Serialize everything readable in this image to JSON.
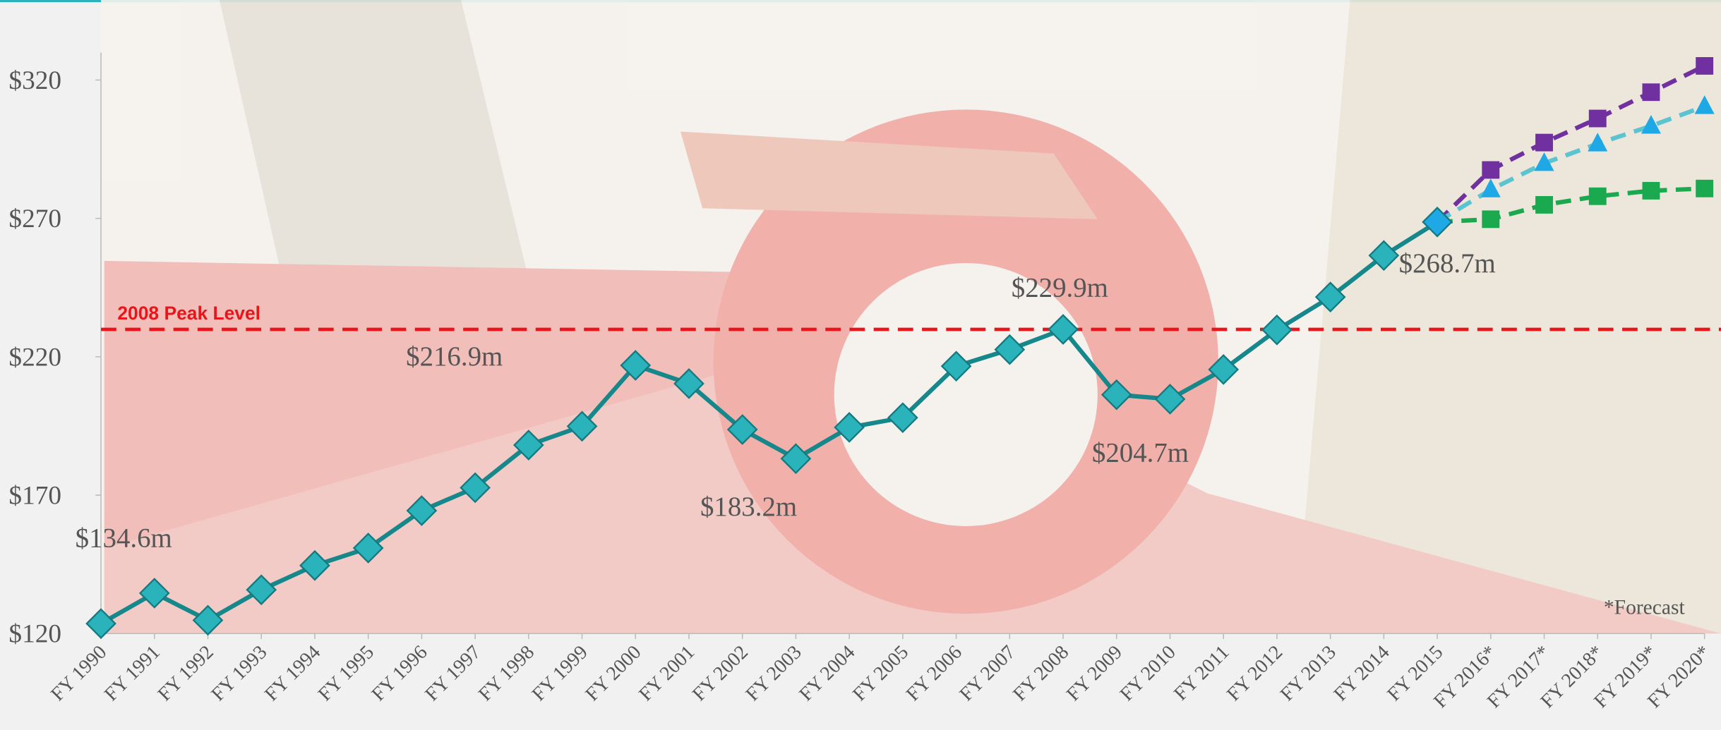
{
  "chart_data": {
    "type": "line",
    "categories": [
      "FY 1990",
      "FY 1991",
      "FY 1992",
      "FY 1993",
      "FY 1994",
      "FY 1995",
      "FY 1996",
      "FY 1997",
      "FY 1998",
      "FY 1999",
      "FY 2000",
      "FY 2001",
      "FY 2002",
      "FY 2003",
      "FY 2004",
      "FY 2005",
      "FY 2006",
      "FY 2007",
      "FY 2008",
      "FY 2009",
      "FY 2010",
      "FY 2011",
      "FY 2012",
      "FY 2013",
      "FY 2014",
      "FY 2015",
      "FY 2016*",
      "FY 2017*",
      "FY 2018*",
      "FY 2019*",
      "FY 2020*"
    ],
    "series": [
      {
        "color": "#16878a",
        "marker_color": "#2bb3bb",
        "last_point_color": "#1ea8e6",
        "marker": "diamond",
        "dash": false,
        "values": [
          123.6,
          134.6,
          124.8,
          135.8,
          144.6,
          150.9,
          164.4,
          172.7,
          188.1,
          194.9,
          216.9,
          210.3,
          193.7,
          183.2,
          194.5,
          198.0,
          216.6,
          222.6,
          229.9,
          206.3,
          204.7,
          215.4,
          229.7,
          241.6,
          256.6,
          268.7,
          null,
          null,
          null,
          null,
          null
        ],
        "value_labels": [
          null,
          "$134.6m",
          null,
          null,
          null,
          null,
          null,
          null,
          null,
          null,
          "$216.9m",
          null,
          null,
          "$183.2m",
          null,
          null,
          null,
          null,
          "$229.9m",
          null,
          "$204.7m",
          null,
          null,
          null,
          null,
          "$268.7m",
          null,
          null,
          null,
          null,
          null
        ]
      },
      {
        "color": "#7030a0",
        "marker_color": "#7030a0",
        "marker": "square",
        "dash": true,
        "values": [
          null,
          null,
          null,
          null,
          null,
          null,
          null,
          null,
          null,
          null,
          null,
          null,
          null,
          null,
          null,
          null,
          null,
          null,
          null,
          null,
          null,
          null,
          null,
          null,
          null,
          268.7,
          287.5,
          297.4,
          306.1,
          315.6,
          325.1
        ]
      },
      {
        "color": "#5cc3d1",
        "marker_color": "#1ea8e6",
        "marker": "triangle",
        "dash": true,
        "values": [
          null,
          null,
          null,
          null,
          null,
          null,
          null,
          null,
          null,
          null,
          null,
          null,
          null,
          null,
          null,
          null,
          null,
          null,
          null,
          null,
          null,
          null,
          null,
          null,
          null,
          268.7,
          280.4,
          289.9,
          297.0,
          303.4,
          310.5
        ]
      },
      {
        "color": "#1aa94e",
        "marker_color": "#1aa94e",
        "marker": "square",
        "dash": true,
        "values": [
          null,
          null,
          null,
          null,
          null,
          null,
          null,
          null,
          null,
          null,
          null,
          null,
          null,
          null,
          null,
          null,
          null,
          null,
          null,
          null,
          null,
          null,
          null,
          null,
          null,
          268.7,
          269.7,
          274.9,
          278.0,
          280.0,
          280.8
        ]
      }
    ],
    "reference_line": {
      "label": "2008 Peak Level",
      "value": 229.9,
      "color": "#e8161b"
    },
    "annotation": "*Forecast",
    "ylim": [
      120,
      330
    ],
    "yticks": [
      {
        "value": 120,
        "label": "$120"
      },
      {
        "value": 170,
        "label": "$170"
      },
      {
        "value": 220,
        "label": "$220"
      },
      {
        "value": 270,
        "label": "$270"
      },
      {
        "value": 320,
        "label": "$320"
      }
    ],
    "grid": false
  }
}
